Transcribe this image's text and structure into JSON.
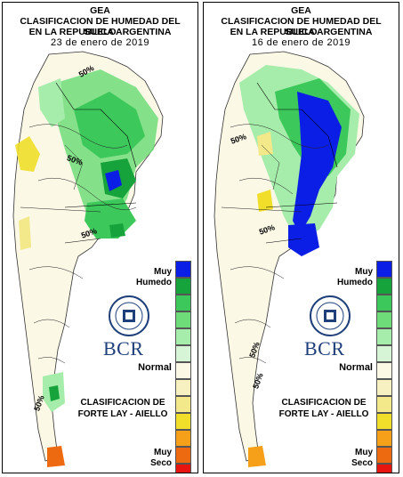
{
  "panels": [
    {
      "org": "GEA",
      "title_line1": "CLASIFICACION DE HUMEDAD DEL SUELO",
      "title_line2": "EN LA REPUBLICA ARGENTINA",
      "date": "23 de enero de 2019",
      "contour_labels": [
        "50%",
        "50%",
        "50%",
        "50%"
      ]
    },
    {
      "org": "GEA",
      "title_line1": "CLASIFICACION DE HUMEDAD DEL SUELO",
      "title_line2": "EN LA REPUBLICA ARGENTINA",
      "date": "16 de enero de 2019",
      "contour_labels": [
        "50%",
        "50%",
        "50%",
        "50%"
      ]
    }
  ],
  "legend": {
    "top_label_line1": "Muy",
    "top_label_line2": "Humedo",
    "middle_label": "Normal",
    "bottom_label_line1": "Muy",
    "bottom_label_line2": "Seco",
    "colors": [
      "#0a1ee6",
      "#16a33c",
      "#3cc85a",
      "#6edc78",
      "#a6ecaa",
      "#d6f5d6",
      "#fbf8e6",
      "#f7f0c0",
      "#f3e88a",
      "#f0de2a",
      "#f5a018",
      "#ee6a10",
      "#e81410"
    ]
  },
  "branding": {
    "logo_text": "BCR",
    "classification_line1": "CLASIFICACION DE",
    "classification_line2": "FORTE LAY - AIELLO"
  }
}
